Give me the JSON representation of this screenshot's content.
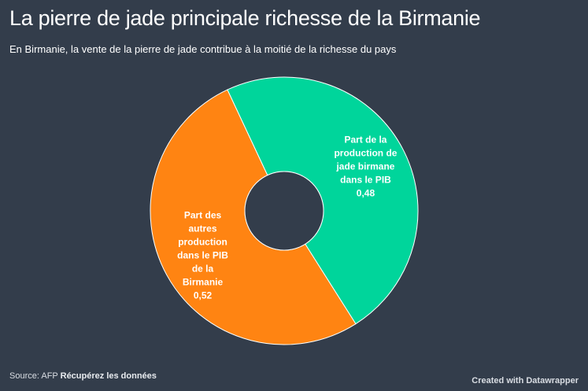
{
  "header": {
    "title": "La pierre de jade principale richesse de la Birmanie",
    "subtitle": "En Birmanie, la vente de la pierre de jade contribue à la moitié de la richesse du pays"
  },
  "chart_data": {
    "type": "pie",
    "variant": "donut",
    "title": "La pierre de jade principale richesse de la Birmanie",
    "slices": [
      {
        "label_lines": [
          "Part de la",
          "production de",
          "jade birmane",
          "dans le PIB"
        ],
        "value": 0.48,
        "value_text": "0,48",
        "color": "#00d59b"
      },
      {
        "label_lines": [
          "Part des",
          "autres",
          "production",
          "dans le PIB",
          "de la",
          "Birmanie"
        ],
        "value": 0.52,
        "value_text": "0,52",
        "color": "#ff8412"
      }
    ]
  },
  "footer": {
    "source_prefix": "Source: AFP",
    "source_link": "Récupérez les données",
    "credit": "Created with Datawrapper"
  }
}
